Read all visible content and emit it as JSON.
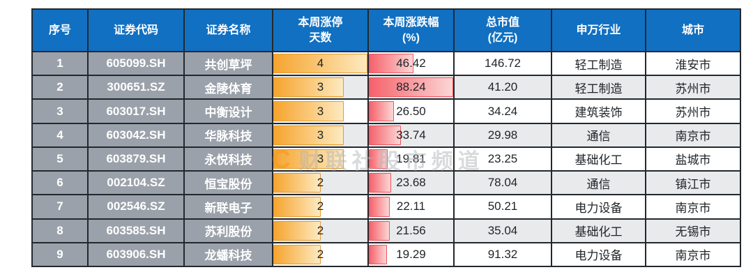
{
  "chart_data": {
    "type": "table",
    "columns": [
      {
        "key": "index",
        "label": "序号"
      },
      {
        "key": "code",
        "label": "证券代码"
      },
      {
        "key": "name",
        "label": "证券名称"
      },
      {
        "key": "limit_up_days",
        "label": "本周涨停\n天数",
        "data_bar": "orange"
      },
      {
        "key": "change_pct",
        "label": "本周涨跌幅\n(%)",
        "data_bar": "red"
      },
      {
        "key": "market_cap",
        "label": "总市值\n(亿元)"
      },
      {
        "key": "industry",
        "label": "申万行业"
      },
      {
        "key": "city",
        "label": "城市"
      }
    ],
    "rows": [
      {
        "index": "1",
        "code": "605099.SH",
        "name": "共创草坪",
        "limit_up_days": "4",
        "change_pct": "46.42",
        "market_cap": "146.72",
        "industry": "轻工制造",
        "city": "淮安市"
      },
      {
        "index": "2",
        "code": "300651.SZ",
        "name": "金陵体育",
        "limit_up_days": "3",
        "change_pct": "88.24",
        "market_cap": "41.20",
        "industry": "轻工制造",
        "city": "苏州市"
      },
      {
        "index": "3",
        "code": "603017.SH",
        "name": "中衡设计",
        "limit_up_days": "3",
        "change_pct": "26.50",
        "market_cap": "34.24",
        "industry": "建筑装饰",
        "city": "苏州市"
      },
      {
        "index": "4",
        "code": "603042.SH",
        "name": "华脉科技",
        "limit_up_days": "3",
        "change_pct": "33.74",
        "market_cap": "29.98",
        "industry": "通信",
        "city": "南京市"
      },
      {
        "index": "5",
        "code": "603879.SH",
        "name": "永悦科技",
        "limit_up_days": "3",
        "change_pct": "19.81",
        "market_cap": "23.25",
        "industry": "基础化工",
        "city": "盐城市"
      },
      {
        "index": "6",
        "code": "002104.SZ",
        "name": "恒宝股份",
        "limit_up_days": "2",
        "change_pct": "23.68",
        "market_cap": "78.04",
        "industry": "通信",
        "city": "镇江市"
      },
      {
        "index": "7",
        "code": "002546.SZ",
        "name": "新联电子",
        "limit_up_days": "2",
        "change_pct": "22.11",
        "market_cap": "50.21",
        "industry": "电力设备",
        "city": "南京市"
      },
      {
        "index": "8",
        "code": "603585.SH",
        "name": "苏利股份",
        "limit_up_days": "2",
        "change_pct": "21.56",
        "market_cap": "35.04",
        "industry": "基础化工",
        "city": "无锡市"
      },
      {
        "index": "9",
        "code": "603906.SH",
        "name": "龙蟠科技",
        "limit_up_days": "2",
        "change_pct": "19.29",
        "market_cap": "91.32",
        "industry": "电力设备",
        "city": "南京市"
      }
    ],
    "data_bar_max": {
      "limit_up_days": 4,
      "change_pct": 88.24
    },
    "layout": {
      "grid": "on",
      "header_rows": 1,
      "striped_rows": "even"
    }
  },
  "watermark": {
    "logo": "C",
    "text": "财联社股市频道"
  },
  "colors": {
    "header_blue": "#1170c1",
    "row_gray": "#9ba1aa",
    "stripe_gray": "#e9eaeb",
    "border_dark": "#23282e",
    "text_dark": "#1f2328",
    "bar_orange": "#f6a42e",
    "bar_orange_light": "#fdeac0",
    "bar_orange_border": "#e79a28",
    "bar_red": "#f5626b",
    "bar_red_light": "#fcd6d5",
    "bar_red_border": "#ef545f",
    "watermark_orange": "#f59b27",
    "watermark_gray": "#b0b4b8"
  }
}
